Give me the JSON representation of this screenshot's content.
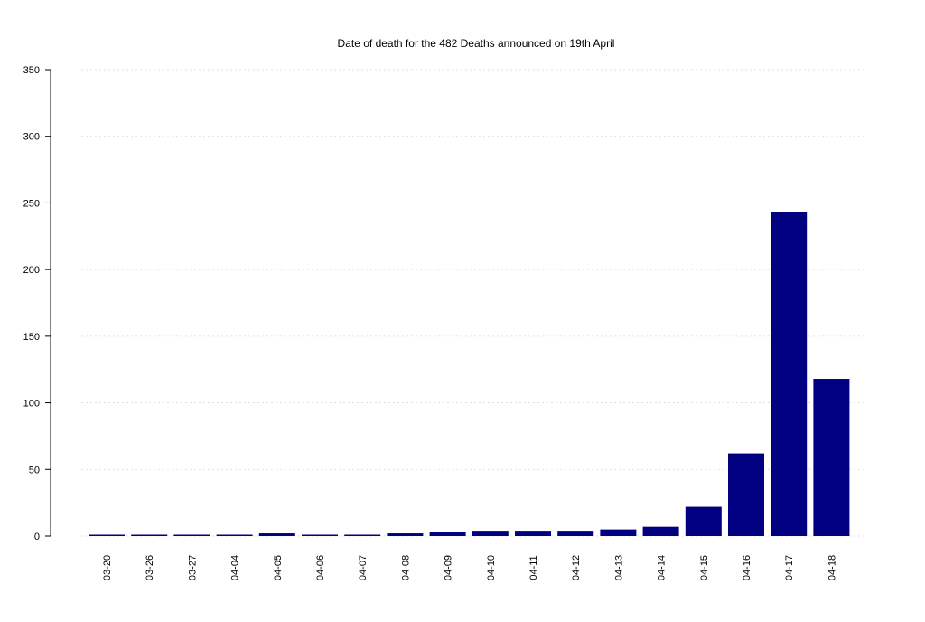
{
  "chart_data": {
    "type": "bar",
    "title": "Date of death for the 482 Deaths announced on 19th April",
    "xlabel": "",
    "ylabel": "",
    "categories": [
      "03-20",
      "03-26",
      "03-27",
      "04-04",
      "04-05",
      "04-06",
      "04-07",
      "04-08",
      "04-09",
      "04-10",
      "04-11",
      "04-12",
      "04-13",
      "04-14",
      "04-15",
      "04-16",
      "04-17",
      "04-18"
    ],
    "values": [
      1,
      1,
      1,
      1,
      2,
      1,
      1,
      2,
      3,
      4,
      4,
      4,
      5,
      7,
      22,
      62,
      243,
      118
    ],
    "ylim": [
      0,
      350
    ],
    "yticks": [
      0,
      50,
      100,
      150,
      200,
      250,
      300,
      350
    ],
    "grid": "horizontal dotted",
    "bar_color": "#000080",
    "legend": "none"
  }
}
